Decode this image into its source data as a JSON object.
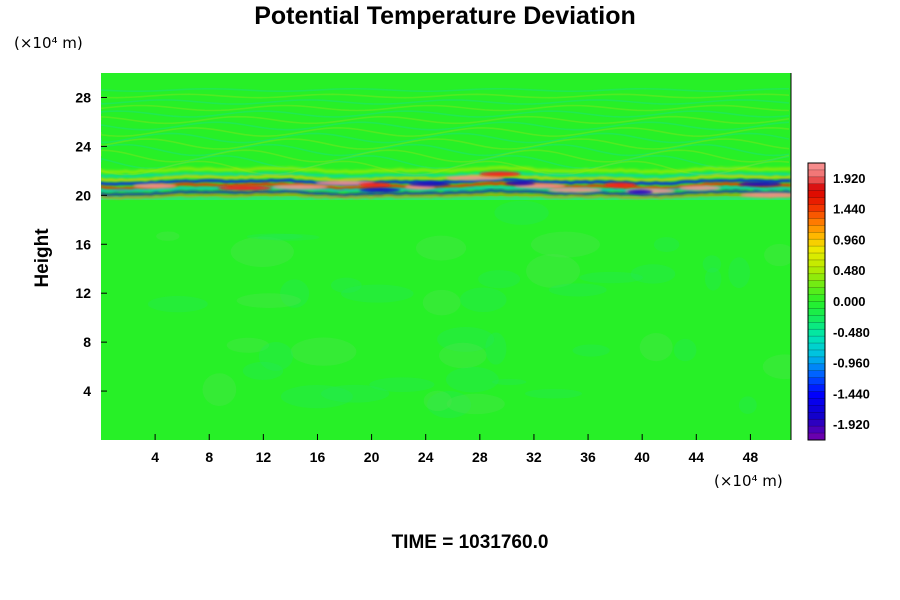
{
  "chart_data": {
    "type": "heatmap",
    "title": "Potential Temperature Deviation",
    "ylabel": "Height",
    "y_unit": "(×10⁴ m)",
    "x_unit": "(×10⁴ m)",
    "xlim": [
      0,
      51
    ],
    "ylim": [
      0,
      30
    ],
    "x_ticks": [
      "4",
      "8",
      "12",
      "16",
      "20",
      "24",
      "28",
      "32",
      "36",
      "40",
      "44",
      "48"
    ],
    "x_tick_values": [
      4,
      8,
      12,
      16,
      20,
      24,
      28,
      32,
      36,
      40,
      44,
      48
    ],
    "y_ticks": [
      "4",
      "8",
      "12",
      "16",
      "20",
      "24",
      "28"
    ],
    "y_tick_values": [
      4,
      8,
      12,
      16,
      20,
      24,
      28
    ],
    "colorbar": {
      "range": [
        -2.16,
        2.16
      ],
      "labels": [
        "1.920",
        "1.440",
        "0.960",
        "0.480",
        "0.000",
        "-0.480",
        "-0.960",
        "-1.440",
        "-1.920"
      ],
      "label_values": [
        1.92,
        1.44,
        0.96,
        0.48,
        0.0,
        -0.48,
        -0.96,
        -1.44,
        -1.92
      ]
    },
    "time_label": "TIME = 1031760.0"
  }
}
